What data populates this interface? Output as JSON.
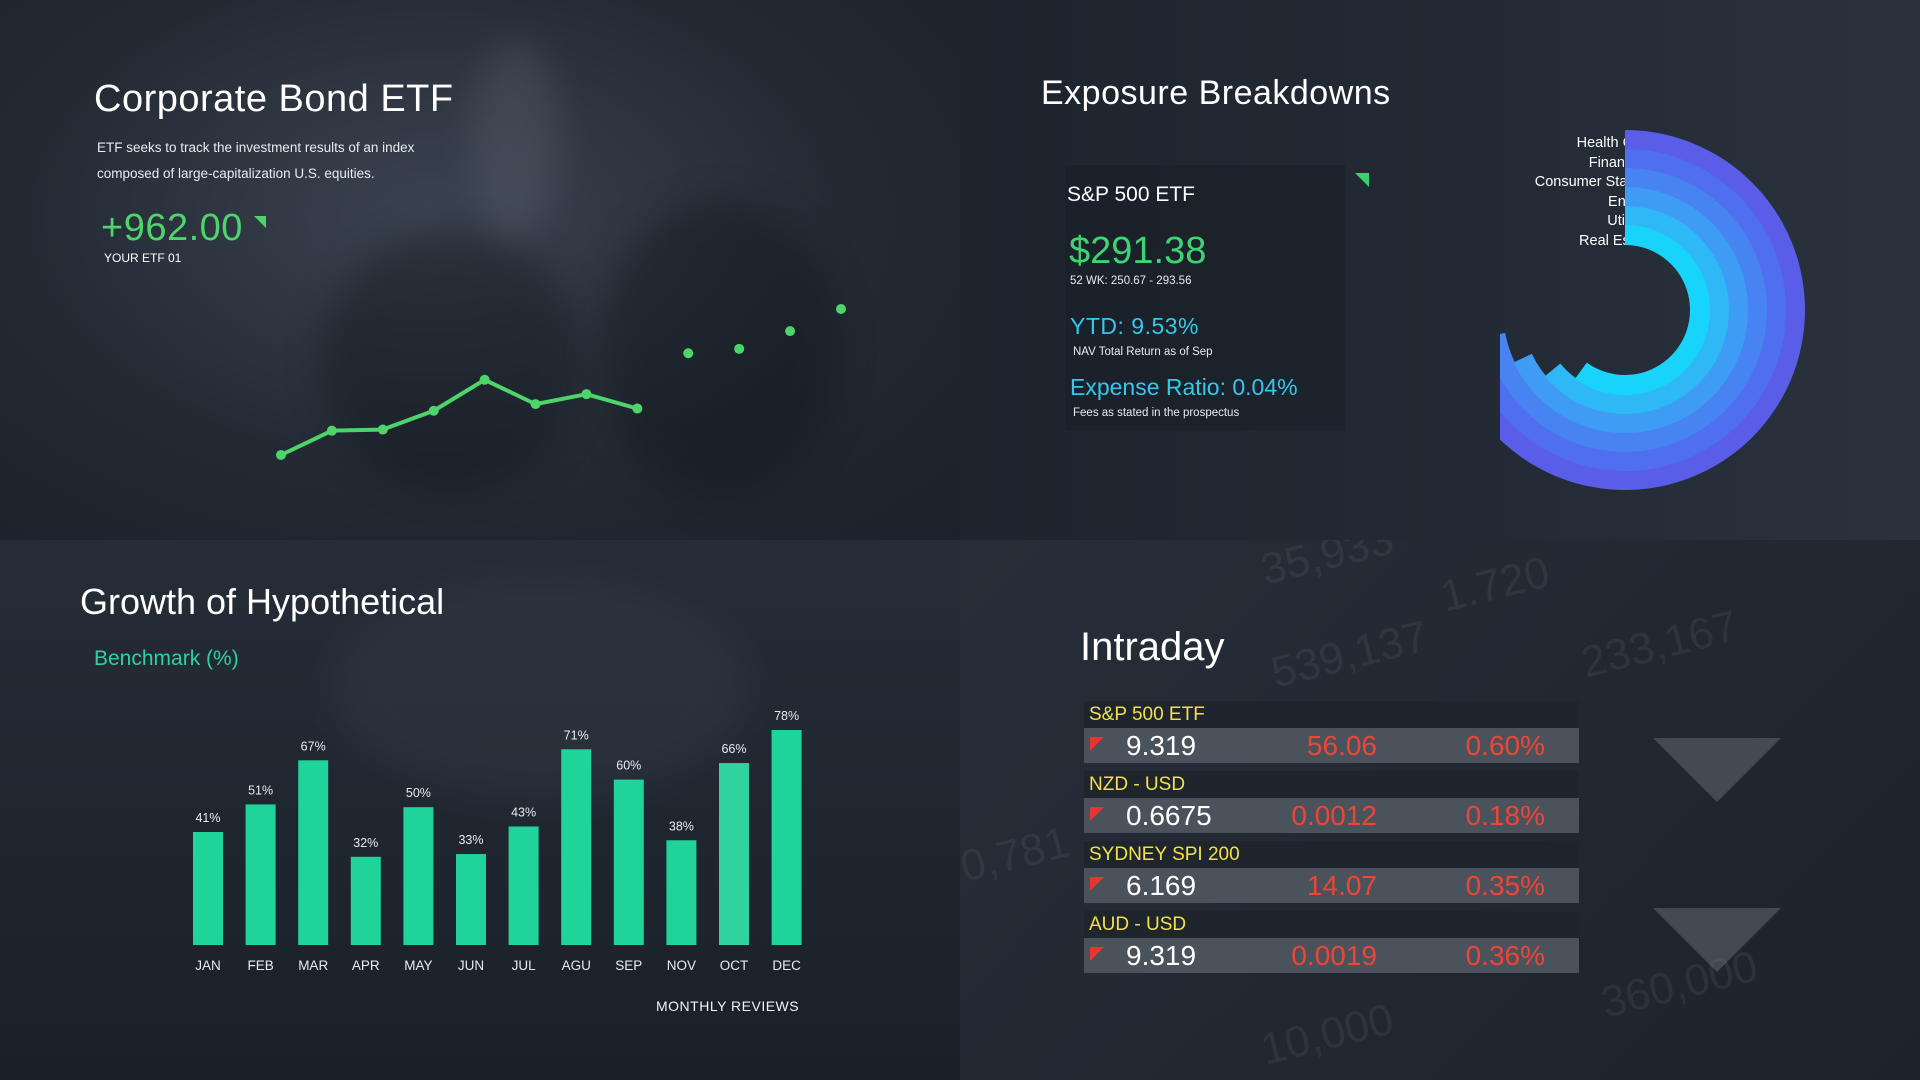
{
  "corporate_bond": {
    "title": "Corporate Bond ETF",
    "description": "ETF seeks to track the investment results of an index composed of large-capitalization U.S. equities.",
    "value": "+962.00",
    "value_label": "YOUR ETF 01",
    "color": "#4dd46a"
  },
  "exposure": {
    "title": "Exposure Breakdowns",
    "fund_name": "S&P 500 ETF",
    "price": "$291.38",
    "range": "52 WK: 250.67 - 293.56",
    "ytd": "YTD:  9.53%",
    "ytd_note": "NAV Total Return as of Sep",
    "expense": "Expense Ratio: 0.04%",
    "expense_note": "Fees as stated in the prospectus",
    "legend": [
      "Health Care",
      "Financials",
      "Consumer Staples",
      "Energy",
      "Utilities",
      "Real Estate"
    ]
  },
  "growth": {
    "title": "Growth of Hypothetical",
    "benchmark": "Benchmark (%)",
    "footer": "MONTHLY REVIEWS"
  },
  "intraday": {
    "title": "Intraday",
    "rows": [
      {
        "name": "S&P 500 ETF",
        "price": "9.319",
        "change": "56.06",
        "pct": "0.60%"
      },
      {
        "name": "NZD - USD",
        "price": "0.6675",
        "change": "0.0012",
        "pct": "0.18%"
      },
      {
        "name": "SYDNEY SPI 200",
        "price": "6.169",
        "change": "14.07",
        "pct": "0.35%"
      },
      {
        "name": "AUD - USD",
        "price": "9.319",
        "change": "0.0019",
        "pct": "0.36%"
      }
    ]
  },
  "chart_data": [
    {
      "type": "line",
      "title": "",
      "x": [
        1,
        2,
        3,
        4,
        5,
        6,
        7,
        8,
        9,
        10,
        11,
        12
      ],
      "values": [
        0,
        11,
        11.5,
        20,
        34,
        23,
        27.5,
        21,
        46,
        48,
        56,
        66
      ],
      "connected_points": 8,
      "color": "#4dd46a"
    },
    {
      "type": "bar",
      "title": "",
      "categories": [
        "JAN",
        "FEB",
        "MAR",
        "APR",
        "MAY",
        "JUN",
        "JUL",
        "AGU",
        "SEP",
        "NOV",
        "OCT",
        "DEC"
      ],
      "values": [
        41,
        51,
        67,
        32,
        50,
        33,
        43,
        71,
        60,
        38,
        66,
        78
      ],
      "labels": [
        "41%",
        "51%",
        "67%",
        "32%",
        "50%",
        "33%",
        "43%",
        "71%",
        "60%",
        "38%",
        "66%",
        "78%"
      ],
      "color": "#1fd39a",
      "ylim": [
        0,
        80
      ]
    },
    {
      "type": "pie",
      "title": "",
      "categories": [
        "Health Care",
        "Financials",
        "Consumer Staples",
        "Energy",
        "Utilities",
        "Real Estate"
      ],
      "values": [
        0.82,
        0.76,
        0.72,
        0.68,
        0.64,
        0.6
      ],
      "colors": [
        "#5a5de8",
        "#4f6ff0",
        "#4784f2",
        "#3f9cf4",
        "#2fb8f6",
        "#19d4fa"
      ]
    }
  ]
}
